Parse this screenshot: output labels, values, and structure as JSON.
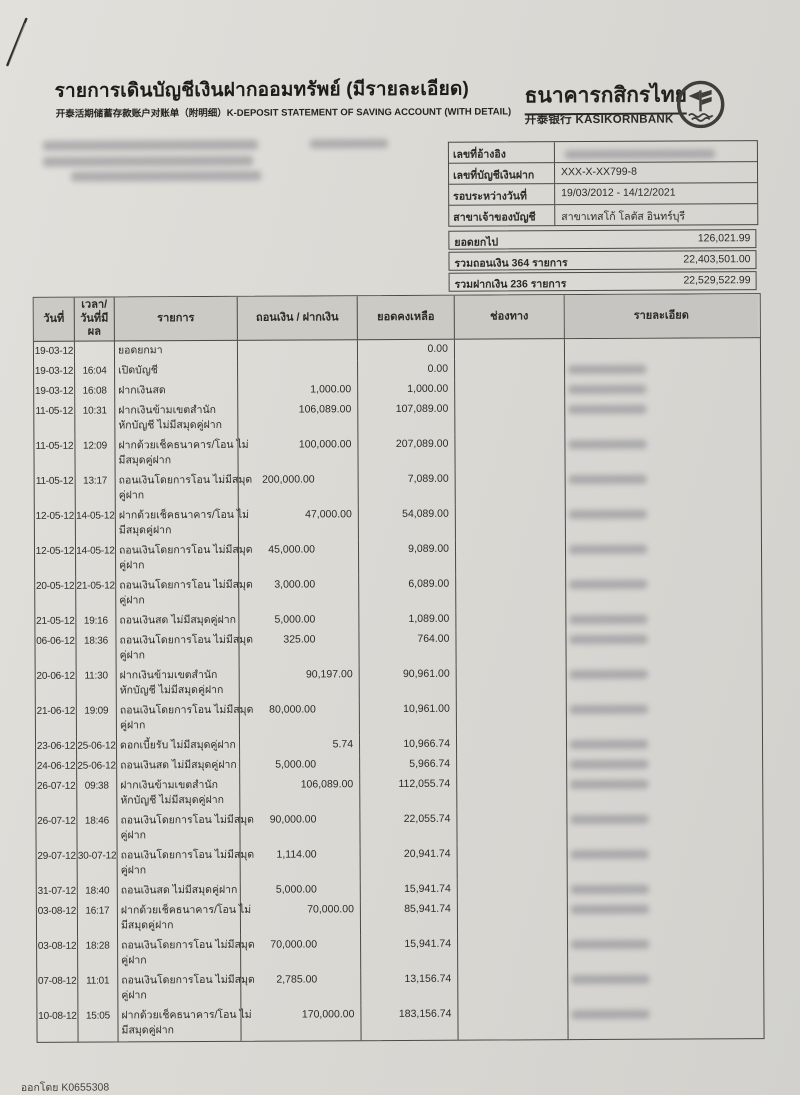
{
  "document": {
    "title_th": "รายการเดินบัญชีเงินฝากออมทรัพย์ (มีรายละเอียด)",
    "subtitle": "开泰活期储蓄存款账户对账单（附明细）K-DEPOSIT STATEMENT OF SAVING ACCOUNT (WITH DETAIL)",
    "issued_by": "ออกโดย K0655308",
    "paper_color": "#dbd9d4",
    "ink_color": "#2b2a26"
  },
  "bank": {
    "name_th": "ธนาคารกสิกรไทย",
    "name_intl": "开泰银行 KASIKORNBANK",
    "logo_icon": "kasikorn-rice-stalk-in-circle"
  },
  "account_info": {
    "rows": [
      {
        "label": "เลขที่อ้างอิง",
        "value": "",
        "redacted": true
      },
      {
        "label": "เลขที่บัญชีเงินฝาก",
        "value": "XXX-X-XX799-8",
        "redacted": false
      },
      {
        "label": "รอบระหว่างวันที่",
        "value": "19/03/2012 - 14/12/2021",
        "redacted": false
      },
      {
        "label": "สาขาเจ้าของบัญชี",
        "value": "สาขาเทสโก้ โลตัส อินทร์บุรี",
        "redacted": false
      }
    ]
  },
  "summary": {
    "rows": [
      {
        "label": "ยอดยกไป",
        "value": "126,021.99"
      },
      {
        "label": "รวมถอนเงิน 364 รายการ",
        "value": "22,403,501.00"
      },
      {
        "label": "รวมฝากเงิน 236 รายการ",
        "value": "22,529,522.99"
      }
    ]
  },
  "table": {
    "headers": {
      "date": "วันที่",
      "time_line1": "เวลา/",
      "time_line2": "วันที่มีผล",
      "description": "รายการ",
      "amount": "ถอนเงิน / ฝากเงิน",
      "balance": "ยอดคงเหลือ",
      "channel": "ช่องทาง",
      "detail": "รายละเอียด"
    },
    "rows": [
      {
        "date": "19-03-12",
        "time": "",
        "desc_lines": [
          "ยอดยกมา"
        ],
        "withdrawal": "",
        "deposit": "",
        "balance": "0.00",
        "detail_redacted": false
      },
      {
        "date": "19-03-12",
        "time": "16:04",
        "desc_lines": [
          "เปิดบัญชี"
        ],
        "withdrawal": "",
        "deposit": "",
        "balance": "0.00",
        "detail_redacted": true
      },
      {
        "date": "19-03-12",
        "time": "16:08",
        "desc_lines": [
          "ฝากเงินสด"
        ],
        "withdrawal": "",
        "deposit": "1,000.00",
        "balance": "1,000.00",
        "detail_redacted": true
      },
      {
        "date": "11-05-12",
        "time": "10:31",
        "desc_lines": [
          "ฝากเงินข้ามเขตสำนัก",
          "หักบัญชี ไม่มีสมุดคู่ฝาก"
        ],
        "withdrawal": "",
        "deposit": "106,089.00",
        "balance": "107,089.00",
        "detail_redacted": true
      },
      {
        "date": "11-05-12",
        "time": "12:09",
        "desc_lines": [
          "ฝากด้วยเช็คธนาคาร/โอน ไม่",
          "มีสมุดคู่ฝาก"
        ],
        "withdrawal": "",
        "deposit": "100,000.00",
        "balance": "207,089.00",
        "detail_redacted": true
      },
      {
        "date": "11-05-12",
        "time": "13:17",
        "desc_lines": [
          "ถอนเงินโดยการโอน ไม่มีสมุด",
          "คู่ฝาก"
        ],
        "withdrawal": "200,000.00",
        "deposit": "",
        "balance": "7,089.00",
        "detail_redacted": true
      },
      {
        "date": "12-05-12",
        "time": "14-05-12",
        "desc_lines": [
          "ฝากด้วยเช็คธนาคาร/โอน ไม่",
          "มีสมุดคู่ฝาก"
        ],
        "withdrawal": "",
        "deposit": "47,000.00",
        "balance": "54,089.00",
        "detail_redacted": true
      },
      {
        "date": "12-05-12",
        "time": "14-05-12",
        "desc_lines": [
          "ถอนเงินโดยการโอน ไม่มีสมุด",
          "คู่ฝาก"
        ],
        "withdrawal": "45,000.00",
        "deposit": "",
        "balance": "9,089.00",
        "detail_redacted": true
      },
      {
        "date": "20-05-12",
        "time": "21-05-12",
        "desc_lines": [
          "ถอนเงินโดยการโอน ไม่มีสมุด",
          "คู่ฝาก"
        ],
        "withdrawal": "3,000.00",
        "deposit": "",
        "balance": "6,089.00",
        "detail_redacted": true
      },
      {
        "date": "21-05-12",
        "time": "19:16",
        "desc_lines": [
          "ถอนเงินสด ไม่มีสมุดคู่ฝาก"
        ],
        "withdrawal": "5,000.00",
        "deposit": "",
        "balance": "1,089.00",
        "detail_redacted": true
      },
      {
        "date": "06-06-12",
        "time": "18:36",
        "desc_lines": [
          "ถอนเงินโดยการโอน ไม่มีสมุด",
          "คู่ฝาก"
        ],
        "withdrawal": "325.00",
        "deposit": "",
        "balance": "764.00",
        "detail_redacted": true
      },
      {
        "date": "20-06-12",
        "time": "11:30",
        "desc_lines": [
          "ฝากเงินข้ามเขตสำนัก",
          "หักบัญชี ไม่มีสมุดคู่ฝาก"
        ],
        "withdrawal": "",
        "deposit": "90,197.00",
        "balance": "90,961.00",
        "detail_redacted": true
      },
      {
        "date": "21-06-12",
        "time": "19:09",
        "desc_lines": [
          "ถอนเงินโดยการโอน ไม่มีสมุด",
          "คู่ฝาก"
        ],
        "withdrawal": "80,000.00",
        "deposit": "",
        "balance": "10,961.00",
        "detail_redacted": true
      },
      {
        "date": "23-06-12",
        "time": "25-06-12",
        "desc_lines": [
          "ดอกเบี้ยรับ ไม่มีสมุดคู่ฝาก"
        ],
        "withdrawal": "",
        "deposit": "5.74",
        "balance": "10,966.74",
        "detail_redacted": true
      },
      {
        "date": "24-06-12",
        "time": "25-06-12",
        "desc_lines": [
          "ถอนเงินสด ไม่มีสมุดคู่ฝาก"
        ],
        "withdrawal": "5,000.00",
        "deposit": "",
        "balance": "5,966.74",
        "detail_redacted": true
      },
      {
        "date": "26-07-12",
        "time": "09:38",
        "desc_lines": [
          "ฝากเงินข้ามเขตสำนัก",
          "หักบัญชี ไม่มีสมุดคู่ฝาก"
        ],
        "withdrawal": "",
        "deposit": "106,089.00",
        "balance": "112,055.74",
        "detail_redacted": true
      },
      {
        "date": "26-07-12",
        "time": "18:46",
        "desc_lines": [
          "ถอนเงินโดยการโอน ไม่มีสมุด",
          "คู่ฝาก"
        ],
        "withdrawal": "90,000.00",
        "deposit": "",
        "balance": "22,055.74",
        "detail_redacted": true
      },
      {
        "date": "29-07-12",
        "time": "30-07-12",
        "desc_lines": [
          "ถอนเงินโดยการโอน ไม่มีสมุด",
          "คู่ฝาก"
        ],
        "withdrawal": "1,114.00",
        "deposit": "",
        "balance": "20,941.74",
        "detail_redacted": true
      },
      {
        "date": "31-07-12",
        "time": "18:40",
        "desc_lines": [
          "ถอนเงินสด ไม่มีสมุดคู่ฝาก"
        ],
        "withdrawal": "5,000.00",
        "deposit": "",
        "balance": "15,941.74",
        "detail_redacted": true
      },
      {
        "date": "03-08-12",
        "time": "16:17",
        "desc_lines": [
          "ฝากด้วยเช็คธนาคาร/โอน ไม่",
          "มีสมุดคู่ฝาก"
        ],
        "withdrawal": "",
        "deposit": "70,000.00",
        "balance": "85,941.74",
        "detail_redacted": true
      },
      {
        "date": "03-08-12",
        "time": "18:28",
        "desc_lines": [
          "ถอนเงินโดยการโอน ไม่มีสมุด",
          "คู่ฝาก"
        ],
        "withdrawal": "70,000.00",
        "deposit": "",
        "balance": "15,941.74",
        "detail_redacted": true
      },
      {
        "date": "07-08-12",
        "time": "11:01",
        "desc_lines": [
          "ถอนเงินโดยการโอน ไม่มีสมุด",
          "คู่ฝาก"
        ],
        "withdrawal": "2,785.00",
        "deposit": "",
        "balance": "13,156.74",
        "detail_redacted": true
      },
      {
        "date": "10-08-12",
        "time": "15:05",
        "desc_lines": [
          "ฝากด้วยเช็คธนาคาร/โอน ไม่",
          "มีสมุดคู่ฝาก"
        ],
        "withdrawal": "",
        "deposit": "170,000.00",
        "balance": "183,156.74",
        "detail_redacted": true
      }
    ]
  }
}
